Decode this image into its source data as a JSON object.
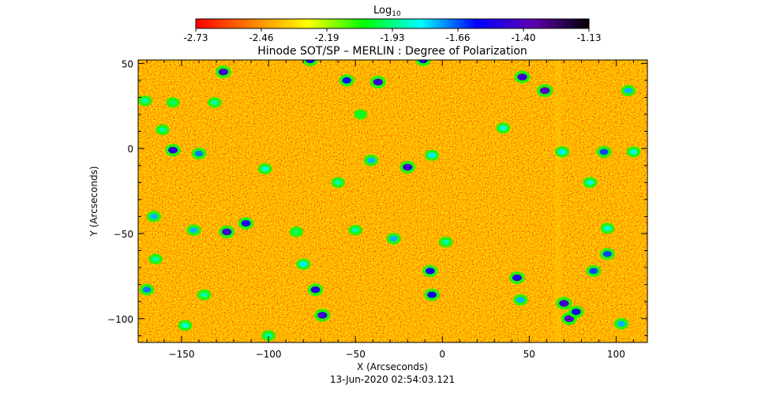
{
  "colorbar": {
    "label": "Log",
    "label_subscript": "10",
    "ticks": [
      "-2.73",
      "-2.46",
      "-2.19",
      "-1.93",
      "-1.66",
      "-1.40",
      "-1.13"
    ],
    "range": [
      -2.73,
      -1.13
    ],
    "colormap": [
      "#ff0000",
      "#ff8000",
      "#ffff00",
      "#00ff00",
      "#00ffff",
      "#0000ff",
      "#6000b0",
      "#000000"
    ]
  },
  "chart_data": {
    "type": "heatmap",
    "title": "Hinode SOT/SP – MERLIN : Degree of Polarization",
    "xlabel": "X (Arcseconds)",
    "ylabel": "Y (Arcseconds)",
    "xlim": [
      -175,
      118
    ],
    "ylim": [
      -114,
      52
    ],
    "xticks": [
      -150,
      -100,
      -50,
      0,
      50,
      100
    ],
    "yticks": [
      50,
      0,
      -50,
      -100
    ],
    "background_value": -2.55,
    "features": [
      {
        "x": -126,
        "y": 45,
        "value": -1.45
      },
      {
        "x": -76,
        "y": 52,
        "value": -1.55
      },
      {
        "x": -55,
        "y": 40,
        "value": -1.6
      },
      {
        "x": -37,
        "y": 39,
        "value": -1.45
      },
      {
        "x": -11,
        "y": 52,
        "value": -1.55
      },
      {
        "x": 46,
        "y": 42,
        "value": -1.45
      },
      {
        "x": 59,
        "y": 34,
        "value": -1.4
      },
      {
        "x": 107,
        "y": 34,
        "value": -1.75
      },
      {
        "x": -171,
        "y": 28,
        "value": -1.9
      },
      {
        "x": -155,
        "y": 27,
        "value": -1.95
      },
      {
        "x": -131,
        "y": 27,
        "value": -1.9
      },
      {
        "x": -47,
        "y": 20,
        "value": -2.0
      },
      {
        "x": 35,
        "y": 12,
        "value": -1.85
      },
      {
        "x": -161,
        "y": 11,
        "value": -1.9
      },
      {
        "x": -155,
        "y": -1,
        "value": -1.5
      },
      {
        "x": -140,
        "y": -3,
        "value": -1.7
      },
      {
        "x": -41,
        "y": -7,
        "value": -1.75
      },
      {
        "x": -20,
        "y": -11,
        "value": -1.45
      },
      {
        "x": -6,
        "y": -4,
        "value": -1.8
      },
      {
        "x": 69,
        "y": -2,
        "value": -1.8
      },
      {
        "x": 93,
        "y": -2,
        "value": -1.65
      },
      {
        "x": 110,
        "y": -2,
        "value": -1.85
      },
      {
        "x": -102,
        "y": -12,
        "value": -1.85
      },
      {
        "x": -60,
        "y": -20,
        "value": -1.9
      },
      {
        "x": 85,
        "y": -20,
        "value": -1.85
      },
      {
        "x": -166,
        "y": -40,
        "value": -1.75
      },
      {
        "x": -124,
        "y": -49,
        "value": -1.45
      },
      {
        "x": -113,
        "y": -44,
        "value": -1.55
      },
      {
        "x": -143,
        "y": -48,
        "value": -1.75
      },
      {
        "x": -84,
        "y": -49,
        "value": -1.95
      },
      {
        "x": -50,
        "y": -48,
        "value": -1.9
      },
      {
        "x": -28,
        "y": -53,
        "value": -1.75
      },
      {
        "x": 2,
        "y": -55,
        "value": -1.9
      },
      {
        "x": 95,
        "y": -47,
        "value": -1.85
      },
      {
        "x": 95,
        "y": -62,
        "value": -1.65
      },
      {
        "x": -165,
        "y": -65,
        "value": -1.9
      },
      {
        "x": -80,
        "y": -68,
        "value": -1.8
      },
      {
        "x": -7,
        "y": -72,
        "value": -1.55
      },
      {
        "x": 43,
        "y": -76,
        "value": -1.5
      },
      {
        "x": 87,
        "y": -72,
        "value": -1.65
      },
      {
        "x": -170,
        "y": -83,
        "value": -1.7
      },
      {
        "x": -137,
        "y": -86,
        "value": -1.9
      },
      {
        "x": -73,
        "y": -83,
        "value": -1.5
      },
      {
        "x": -69,
        "y": -98,
        "value": -1.45
      },
      {
        "x": -6,
        "y": -86,
        "value": -1.55
      },
      {
        "x": 45,
        "y": -89,
        "value": -1.75
      },
      {
        "x": 70,
        "y": -91,
        "value": -1.45
      },
      {
        "x": 73,
        "y": -100,
        "value": -1.4
      },
      {
        "x": 77,
        "y": -96,
        "value": -1.55
      },
      {
        "x": -148,
        "y": -104,
        "value": -1.85
      },
      {
        "x": -100,
        "y": -110,
        "value": -1.9
      },
      {
        "x": 103,
        "y": -103,
        "value": -1.75
      }
    ]
  },
  "footer": {
    "timestamp": "13-Jun-2020 02:54:03.121"
  }
}
